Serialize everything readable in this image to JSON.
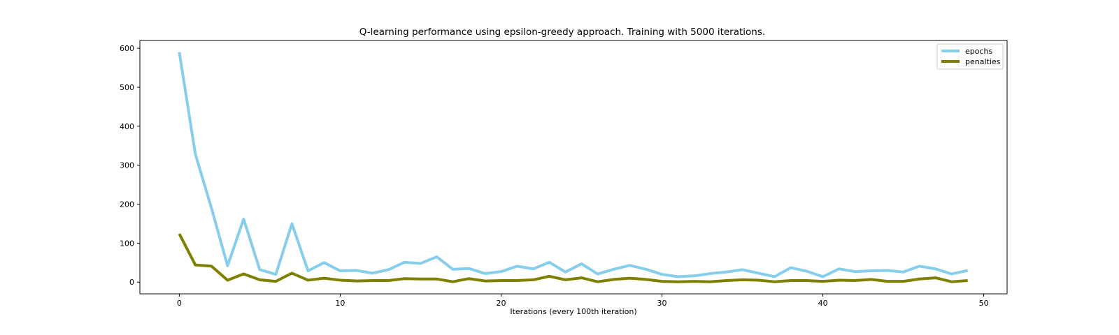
{
  "chart_data": {
    "type": "line",
    "title": "Q-learning performance using epsilon-greedy approach. Training with 5000 iterations.",
    "xlabel": "Iterations (every 100th iteration)",
    "ylabel": "",
    "xlim": [
      -2.45,
      51.45
    ],
    "ylim": [
      -30,
      620
    ],
    "xticks": [
      0,
      10,
      20,
      30,
      40,
      50
    ],
    "yticks": [
      0,
      100,
      200,
      300,
      400,
      500,
      600
    ],
    "grid": false,
    "legend_position": "top-right",
    "x": [
      0,
      1,
      2,
      3,
      4,
      5,
      6,
      7,
      8,
      9,
      10,
      11,
      12,
      13,
      14,
      15,
      16,
      17,
      18,
      19,
      20,
      21,
      22,
      23,
      24,
      25,
      26,
      27,
      28,
      29,
      30,
      31,
      32,
      33,
      34,
      35,
      36,
      37,
      38,
      39,
      40,
      41,
      42,
      43,
      44,
      45,
      46,
      47,
      48,
      49
    ],
    "series": [
      {
        "name": "epochs",
        "color": "#87ceeb",
        "values": [
          590,
          328,
          190,
          42,
          162,
          32,
          20,
          150,
          29,
          50,
          29,
          30,
          23,
          32,
          51,
          48,
          65,
          33,
          35,
          22,
          27,
          41,
          34,
          51,
          26,
          47,
          21,
          33,
          43,
          33,
          20,
          14,
          16,
          22,
          26,
          32,
          23,
          14,
          37,
          28,
          14,
          34,
          27,
          29,
          30,
          26,
          41,
          34,
          21,
          30
        ]
      },
      {
        "name": "penalties",
        "color": "#808000",
        "values": [
          124,
          44,
          41,
          5,
          21,
          6,
          2,
          23,
          5,
          10,
          5,
          3,
          4,
          4,
          9,
          8,
          8,
          1,
          9,
          3,
          4,
          4,
          6,
          15,
          6,
          11,
          1,
          7,
          10,
          7,
          2,
          1,
          2,
          1,
          4,
          6,
          5,
          1,
          4,
          4,
          2,
          5,
          4,
          7,
          2,
          2,
          8,
          11,
          1,
          4
        ]
      }
    ]
  }
}
